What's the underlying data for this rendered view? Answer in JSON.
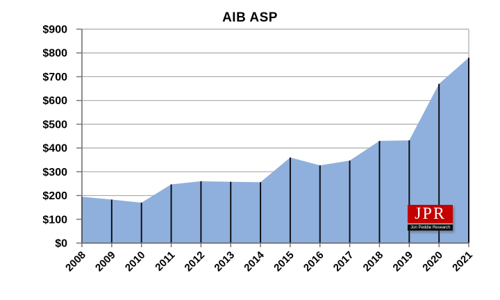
{
  "chart_data": {
    "type": "area",
    "title": "AIB ASP",
    "categories": [
      "2008",
      "2009",
      "2010",
      "2011",
      "2012",
      "2013",
      "2014",
      "2015",
      "2016",
      "2017",
      "2018",
      "2019",
      "2020",
      "2021"
    ],
    "values": [
      195,
      183,
      170,
      247,
      260,
      258,
      256,
      360,
      327,
      347,
      430,
      432,
      670,
      780
    ],
    "xlabel": "",
    "ylabel": "",
    "ylim": [
      0,
      900
    ],
    "ytick_step": 100,
    "ytick_labels": [
      "$0",
      "$100",
      "$200",
      "$300",
      "$400",
      "$500",
      "$600",
      "$700",
      "$800",
      "$900"
    ],
    "grid": true,
    "legend": false,
    "drop_lines": true,
    "x_label_rotation_deg": -45,
    "colors": {
      "area_fill": "#8fb0dc",
      "drop_line": "#0e0e18",
      "gridline": "#a8a8a8",
      "axis": "#6f6f6f",
      "text": "#000000"
    }
  },
  "logo": {
    "abbr": "JPR",
    "name": "Jon Peddie Research",
    "bg_color": "#c40000",
    "band_color": "#0b0b0b"
  }
}
